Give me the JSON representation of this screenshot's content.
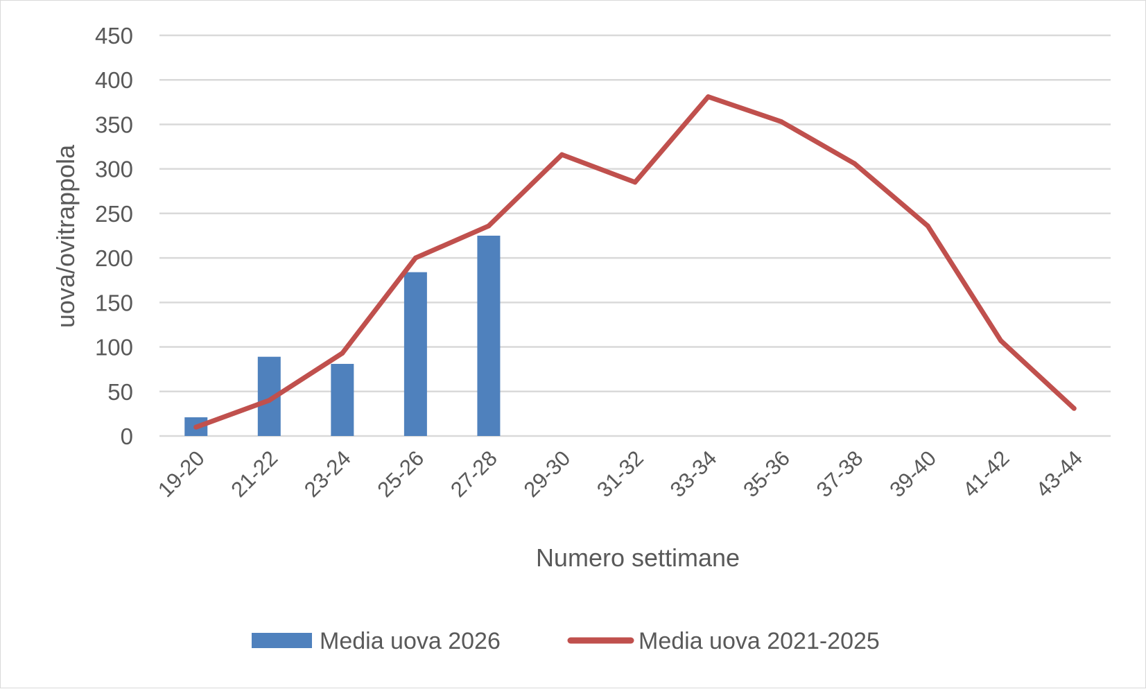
{
  "chart_data": {
    "type": "bar",
    "title": "",
    "xlabel": "Numero settimane",
    "ylabel": "uova/ovitrappola",
    "ylim": [
      0,
      450
    ],
    "yticks": [
      "0",
      "50",
      "100",
      "150",
      "200",
      "250",
      "300",
      "350",
      "400",
      "450"
    ],
    "categories": [
      "19-20",
      "21-22",
      "23-24",
      "25-26",
      "27-28",
      "29-30",
      "31-32",
      "33-34",
      "35-36",
      "37-38",
      "39-40",
      "41-42",
      "43-44"
    ],
    "grid": true,
    "legend_position": "bottom",
    "series": [
      {
        "name": "Media uova 2026",
        "kind": "bar",
        "color": "#4f81bd",
        "values": [
          21,
          89,
          81,
          184,
          225,
          null,
          null,
          null,
          null,
          null,
          null,
          null,
          null
        ]
      },
      {
        "name": "Media uova 2021-2025",
        "kind": "line",
        "color": "#c0504d",
        "values": [
          10,
          40,
          93,
          200,
          236,
          316,
          285,
          381,
          353,
          306,
          236,
          107,
          31
        ]
      }
    ]
  }
}
